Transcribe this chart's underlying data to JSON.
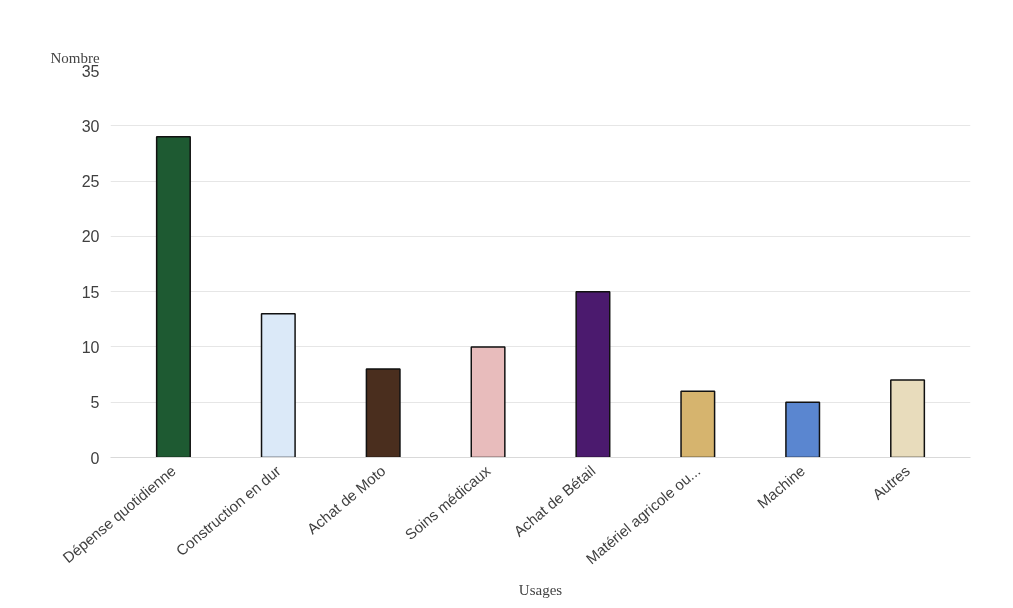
{
  "chart_data": {
    "type": "bar",
    "ylabel": "Nombre",
    "xlabel": "Usages",
    "categories": [
      "Dépense quotidienne",
      "Construction en dur",
      "Achat de Moto",
      "Soins médicaux",
      "Achat de Bétail",
      "Matériel agricole ou...",
      "Machine",
      "Autres"
    ],
    "values": [
      29,
      13,
      8,
      10,
      15,
      6,
      5,
      7
    ],
    "colors": [
      "#1e5a32",
      "#dbe9f8",
      "#4a2e1e",
      "#e8bcbc",
      "#4b1a6e",
      "#d6b46e",
      "#5a86d0",
      "#e8dcbc"
    ],
    "ylim": [
      0,
      35
    ],
    "yticks": [
      0,
      5,
      10,
      15,
      20,
      25,
      30,
      35
    ],
    "grid": "y"
  }
}
